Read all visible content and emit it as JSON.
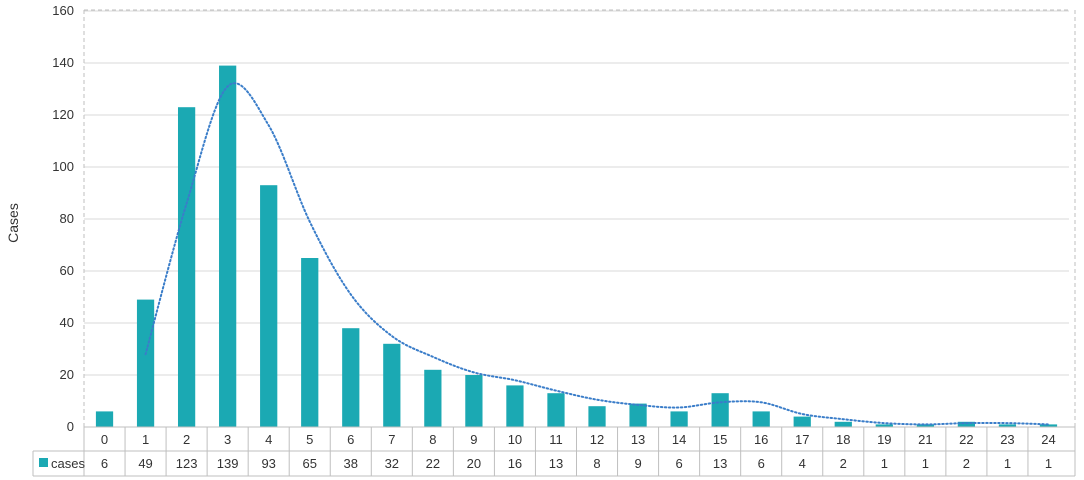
{
  "chart_data": {
    "type": "bar",
    "ylabel": "Cases",
    "ylim": [
      0,
      160
    ],
    "yticks": [
      0,
      20,
      40,
      60,
      80,
      100,
      120,
      140,
      160
    ],
    "grid": true,
    "categories": [
      "0",
      "1",
      "2",
      "3",
      "4",
      "5",
      "6",
      "7",
      "8",
      "9",
      "10",
      "11",
      "12",
      "13",
      "14",
      "15",
      "16",
      "17",
      "18",
      "19",
      "21",
      "22",
      "23",
      "24"
    ],
    "series": [
      {
        "name": "cases",
        "values": [
          6,
          49,
          123,
          139,
          93,
          65,
          38,
          32,
          22,
          20,
          16,
          13,
          8,
          9,
          6,
          13,
          6,
          4,
          2,
          1,
          1,
          2,
          1,
          1
        ],
        "color": "#1BA9B3"
      }
    ],
    "trendline": {
      "style": "dotted",
      "color": "#3A7DC9",
      "values": [
        null,
        28,
        86,
        131,
        116,
        79,
        51,
        35,
        27,
        21,
        18,
        14,
        10.5,
        8.5,
        7.5,
        9.5,
        9.5,
        5,
        3,
        1.5,
        1,
        1.5,
        1.5,
        1
      ]
    },
    "data_table": {
      "legend_label": "cases",
      "shown": true
    }
  }
}
